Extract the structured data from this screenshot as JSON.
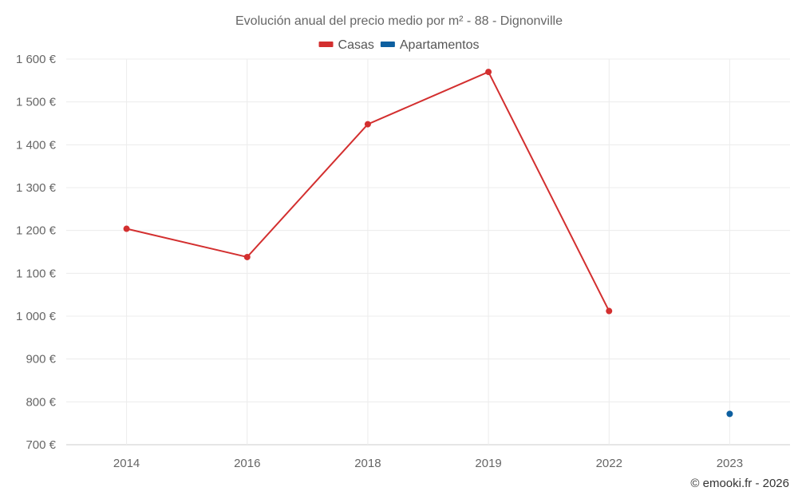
{
  "chart_data": {
    "type": "line",
    "title": "Evolución anual del precio medio por m² - 88 - Dignonville",
    "categories": [
      "2014",
      "2016",
      "2018",
      "2019",
      "2022",
      "2023"
    ],
    "series": [
      {
        "name": "Casas",
        "color": "#d32f2f",
        "values": [
          1204,
          1138,
          1448,
          1570,
          1012,
          null
        ]
      },
      {
        "name": "Apartamentos",
        "color": "#0d5fa0",
        "values": [
          null,
          null,
          null,
          null,
          null,
          772
        ]
      }
    ],
    "ylim": [
      700,
      1600
    ],
    "yticks": [
      700,
      800,
      900,
      1000,
      1100,
      1200,
      1300,
      1400,
      1500,
      1600
    ],
    "ytick_labels": [
      "700 €",
      "800 €",
      "900 €",
      "1 000 €",
      "1 100 €",
      "1 200 €",
      "1 300 €",
      "1 400 €",
      "1 500 €",
      "1 600 €"
    ],
    "grid": true,
    "legend_position": "top-center",
    "credit": "© emooki.fr - 2026"
  }
}
